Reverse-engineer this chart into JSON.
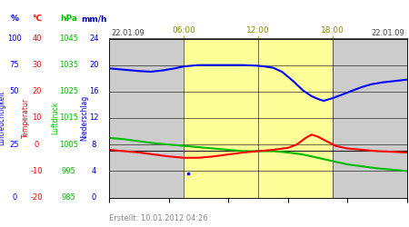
{
  "date_left": "22.01.09",
  "date_right": "22.01.09",
  "footer": "Erstellt: 10.01.2012 04:26",
  "yellow_color": "#ffff99",
  "yellow_x": [
    0.25,
    0.75
  ],
  "plot_bg": "#cccccc",
  "unit_labels": [
    "%",
    "°C",
    "hPa",
    "mm/h"
  ],
  "unit_colors": [
    "#0000ff",
    "#ff0000",
    "#00bb00",
    "#0000bb"
  ],
  "pct_ticks": [
    100,
    75,
    50,
    25,
    0
  ],
  "temp_ticks": [
    40,
    30,
    20,
    10,
    0,
    -10,
    -20
  ],
  "hpa_ticks": [
    1045,
    1035,
    1025,
    1015,
    1005,
    995,
    985
  ],
  "mmh_ticks": [
    24,
    20,
    16,
    12,
    8,
    4,
    0
  ],
  "x_tick_positions": [
    0.25,
    0.5,
    0.75
  ],
  "x_tick_labels": [
    "06:00",
    "12:00",
    "18:00"
  ],
  "blue_line_x": [
    0.0,
    0.05,
    0.1,
    0.14,
    0.18,
    0.22,
    0.25,
    0.3,
    0.35,
    0.4,
    0.45,
    0.5,
    0.52,
    0.55,
    0.58,
    0.62,
    0.65,
    0.68,
    0.7,
    0.72,
    0.75,
    0.78,
    0.82,
    0.85,
    0.88,
    0.92,
    0.96,
    1.0
  ],
  "blue_line_y": [
    19.5,
    19.3,
    19.1,
    19.0,
    19.2,
    19.5,
    19.8,
    20.0,
    20.0,
    20.0,
    20.0,
    19.9,
    19.8,
    19.6,
    19.0,
    17.5,
    16.2,
    15.3,
    14.9,
    14.6,
    15.0,
    15.5,
    16.2,
    16.7,
    17.1,
    17.4,
    17.6,
    17.8
  ],
  "green_line_x": [
    0.0,
    0.05,
    0.1,
    0.15,
    0.2,
    0.25,
    0.3,
    0.35,
    0.4,
    0.45,
    0.5,
    0.55,
    0.6,
    0.65,
    0.7,
    0.75,
    0.8,
    0.85,
    0.9,
    0.95,
    1.0
  ],
  "green_line_y": [
    9.0,
    8.8,
    8.5,
    8.2,
    8.0,
    7.8,
    7.6,
    7.4,
    7.2,
    7.0,
    7.0,
    7.0,
    6.8,
    6.5,
    6.0,
    5.5,
    5.0,
    4.7,
    4.4,
    4.2,
    4.0
  ],
  "red_line_x": [
    0.0,
    0.05,
    0.1,
    0.15,
    0.2,
    0.25,
    0.3,
    0.35,
    0.4,
    0.45,
    0.5,
    0.55,
    0.6,
    0.63,
    0.66,
    0.68,
    0.7,
    0.73,
    0.76,
    0.8,
    0.85,
    0.9,
    0.95,
    1.0
  ],
  "red_line_y": [
    7.2,
    7.0,
    6.8,
    6.5,
    6.2,
    6.0,
    6.0,
    6.2,
    6.5,
    6.8,
    7.0,
    7.2,
    7.5,
    8.0,
    9.0,
    9.5,
    9.2,
    8.5,
    7.8,
    7.4,
    7.2,
    7.0,
    6.9,
    6.8
  ],
  "black_line_x": [
    0.0,
    1.0
  ],
  "black_line_y": [
    7.0,
    7.0
  ]
}
